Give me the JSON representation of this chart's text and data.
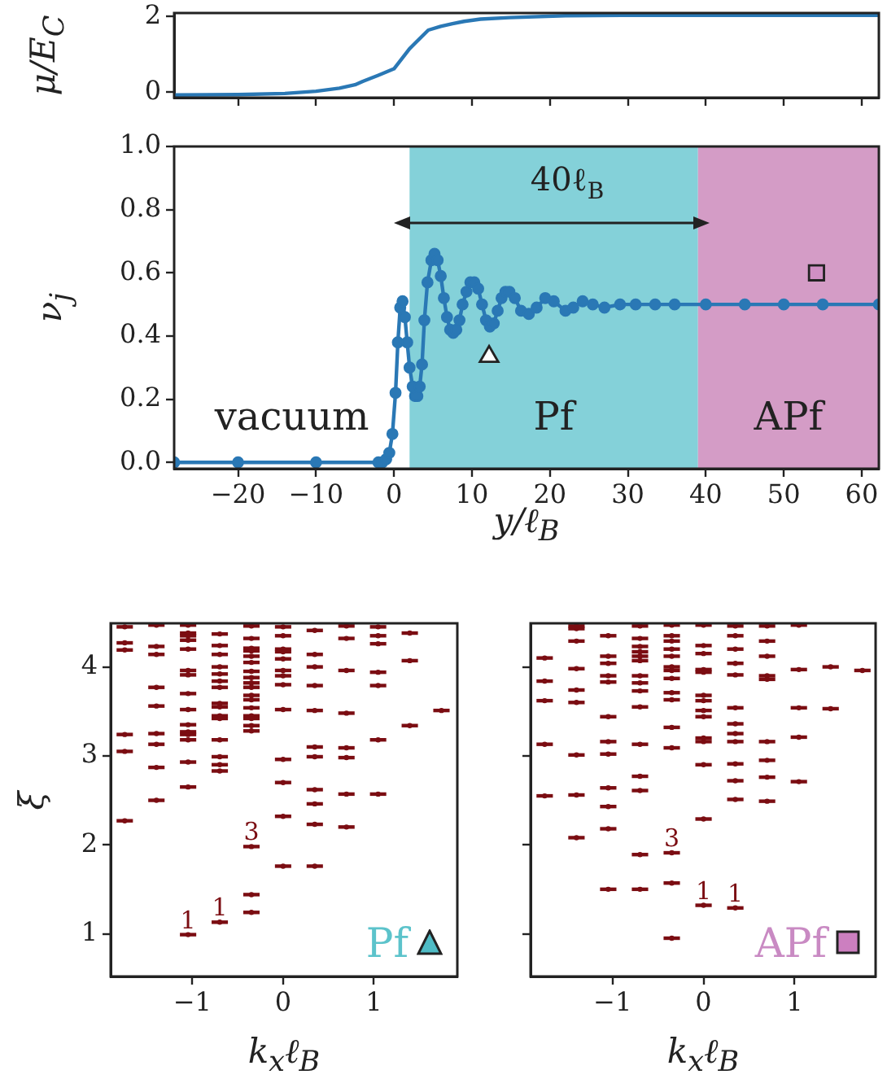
{
  "chart_data": [
    {
      "type": "line",
      "ylabel": "μ/E$_{C}$",
      "x": [
        -28.2,
        -20,
        -14,
        -10,
        -7,
        -5,
        -4,
        -2,
        0,
        2,
        4.4,
        6,
        7.5,
        9,
        11.1,
        14.8,
        22,
        30,
        62.2
      ],
      "series": [
        {
          "color": "#2a78b5",
          "values": [
            -0.07,
            -0.06,
            -0.03,
            0.03,
            0.11,
            0.2,
            0.29,
            0.45,
            0.62,
            1.15,
            1.64,
            1.74,
            1.81,
            1.87,
            1.93,
            1.97,
            2.02,
            2.03,
            2.03
          ]
        }
      ],
      "xlim": [
        -28.2,
        62.2
      ],
      "xticks": [
        {
          "value": -20,
          "label": null
        },
        {
          "value": -10,
          "label": null
        },
        {
          "value": 0,
          "label": null
        },
        {
          "value": 10,
          "label": null
        },
        {
          "value": 20,
          "label": null
        },
        {
          "value": 30,
          "label": null
        },
        {
          "value": 40,
          "label": null
        },
        {
          "value": 50,
          "label": null
        },
        {
          "value": 60,
          "label": null
        }
      ],
      "ylim": [
        -0.14,
        2.09
      ],
      "yticks": [
        0,
        2
      ],
      "tick_labels": "y",
      "marker": "none",
      "grid": false,
      "legend": false
    },
    {
      "type": "line",
      "xlabel": "y/ℓ$_{B}$",
      "ylabel": "ν$_{j}$",
      "x": [
        -28.2,
        -20,
        -10,
        -2,
        -1.5,
        -1.0,
        -0.6,
        -0.2,
        0.2,
        0.5,
        0.8,
        1.1,
        1.4,
        1.7,
        2.0,
        2.4,
        2.7,
        3.0,
        3.3,
        3.6,
        3.9,
        4.3,
        4.8,
        5.2,
        5.6,
        6.0,
        6.4,
        6.8,
        7.2,
        7.6,
        8.0,
        8.4,
        8.8,
        9.3,
        9.8,
        10.3,
        10.8,
        11.3,
        11.8,
        12.3,
        12.8,
        13.3,
        13.8,
        14.3,
        14.8,
        15.5,
        16.3,
        17.3,
        18.3,
        19.4,
        20.5,
        22,
        23,
        24.2,
        25.5,
        27,
        29,
        31,
        33.5,
        36,
        40,
        45,
        50,
        55,
        62.2
      ],
      "series": [
        {
          "color": "#2a78b5",
          "marker": "circle",
          "values": [
            0,
            0,
            0,
            0,
            0,
            0.01,
            0.03,
            0.09,
            0.22,
            0.38,
            0.49,
            0.51,
            0.46,
            0.38,
            0.3,
            0.24,
            0.21,
            0.21,
            0.24,
            0.31,
            0.45,
            0.57,
            0.64,
            0.66,
            0.64,
            0.59,
            0.52,
            0.46,
            0.42,
            0.41,
            0.42,
            0.45,
            0.5,
            0.54,
            0.57,
            0.57,
            0.55,
            0.5,
            0.45,
            0.43,
            0.44,
            0.48,
            0.52,
            0.54,
            0.54,
            0.52,
            0.48,
            0.47,
            0.49,
            0.52,
            0.51,
            0.48,
            0.49,
            0.51,
            0.5,
            0.49,
            0.5,
            0.5,
            0.5,
            0.5,
            0.5,
            0.5,
            0.5,
            0.5,
            0.5
          ]
        },
        {
          "type": "scatter",
          "x": [
            12.2
          ],
          "values": [
            0.335
          ],
          "marker": "triangle",
          "color": "#ffffff"
        },
        {
          "type": "scatter",
          "x": [
            54.2
          ],
          "values": [
            0.6
          ],
          "marker": "square",
          "color": "#d08fc4"
        }
      ],
      "bands": [
        {
          "axis": "x",
          "from": -28.2,
          "to": 2,
          "label": "vacuum",
          "color": "#ffffff"
        },
        {
          "axis": "x",
          "from": 2,
          "to": 39,
          "label": "Pf",
          "color": "#84d1d9"
        },
        {
          "axis": "x",
          "from": 39,
          "to": 62.2,
          "label": "APf",
          "color": "#d49cc6"
        }
      ],
      "annotations": [
        "40ℓ$_{B}$"
      ],
      "xlim": [
        -28.2,
        62.2
      ],
      "xticks": [
        {
          "value": -20,
          "label": "−20"
        },
        {
          "value": -10,
          "label": "−10"
        },
        0,
        10,
        20,
        30,
        40,
        50,
        60
      ],
      "ylim": [
        -0.02,
        1.0
      ],
      "yticks": [
        {
          "value": 0,
          "label": "0.0"
        },
        0.2,
        0.4,
        0.6,
        0.8,
        {
          "value": 1,
          "label": "1.0"
        }
      ],
      "grid": false,
      "legend": false
    },
    {
      "type": "scatter",
      "xlabel": "k$_{x}$ℓ$_{B}$",
      "ylabel": "ξ",
      "marker": "circle",
      "series": [
        {
          "color": "#7b0d12",
          "x": [
            -1.745,
            -1.745,
            -1.745,
            -1.745,
            -1.745,
            -1.745,
            -1.396,
            -1.396,
            -1.396,
            -1.396,
            -1.396,
            -1.396,
            -1.396,
            -1.396,
            -1.396,
            -1.047,
            -1.047,
            -1.047,
            -1.047,
            -1.047,
            -1.047,
            -1.047,
            -1.047,
            -1.047,
            -1.047,
            -1.047,
            -1.047,
            -1.047,
            -1.047,
            -1.047,
            -1.047,
            -0.698,
            -0.698,
            -0.698,
            -0.698,
            -0.698,
            -0.698,
            -0.698,
            -0.698,
            -0.698,
            -0.698,
            -0.698,
            -0.698,
            -0.698,
            -0.698,
            -0.698,
            -0.698,
            -0.349,
            -0.349,
            -0.349,
            -0.349,
            -0.349,
            -0.349,
            -0.349,
            -0.349,
            -0.349,
            -0.349,
            -0.349,
            -0.349,
            -0.349,
            -0.349,
            -0.349,
            -0.349,
            -0.349,
            -0.349,
            -0.349,
            -0.349,
            0,
            0,
            0,
            0,
            0,
            0,
            0,
            0,
            0,
            0,
            0,
            0,
            0,
            0.349,
            0.349,
            0.349,
            0.349,
            0.349,
            0.349,
            0.349,
            0.349,
            0.349,
            0.349,
            0.349,
            0.698,
            0.698,
            0.698,
            0.698,
            0.698,
            0.698,
            0.698,
            0.698,
            1.047,
            1.047,
            1.047,
            1.047,
            1.047,
            1.047,
            1.047,
            1.396,
            1.396,
            1.396,
            1.745
          ],
          "values": [
            4.45,
            4.27,
            4.19,
            3.24,
            3.05,
            2.27,
            4.47,
            4.23,
            4.14,
            3.77,
            3.56,
            3.25,
            3.13,
            2.87,
            2.5,
            4.47,
            4.38,
            4.35,
            4.3,
            4.2,
            3.96,
            3.91,
            3.7,
            3.52,
            3.35,
            3.27,
            3.24,
            3.18,
            2.93,
            2.65,
            0.99,
            4.37,
            4.24,
            4.14,
            4.0,
            3.92,
            3.84,
            3.77,
            3.59,
            3.55,
            3.45,
            3.42,
            3.18,
            2.99,
            2.9,
            2.83,
            1.13,
            4.46,
            4.32,
            4.21,
            4.18,
            4.12,
            4.05,
            3.95,
            3.88,
            3.82,
            3.77,
            3.68,
            3.63,
            3.54,
            3.45,
            3.42,
            3.34,
            3.28,
            1.98,
            1.44,
            1.24,
            4.45,
            4.35,
            4.2,
            4.17,
            4.09,
            3.96,
            3.9,
            3.8,
            3.52,
            2.96,
            2.7,
            2.32,
            1.76,
            4.41,
            4.14,
            4.0,
            3.79,
            3.51,
            3.1,
            2.99,
            2.62,
            2.46,
            2.23,
            1.76,
            4.46,
            4.32,
            3.96,
            3.48,
            3.09,
            2.98,
            2.57,
            2.2,
            4.45,
            4.35,
            4.26,
            3.94,
            3.79,
            3.18,
            2.57,
            4.38,
            4.07,
            3.34,
            3.51
          ],
          "xerrors": [
            0.09,
            0.09,
            0.09,
            0.09,
            0.09,
            0.09,
            0.09,
            0.09,
            0.09,
            0.09,
            0.09,
            0.09,
            0.09,
            0.09,
            0.09,
            0.09,
            0.09,
            0.09,
            0.09,
            0.09,
            0.09,
            0.09,
            0.09,
            0.09,
            0.09,
            0.09,
            0.09,
            0.09,
            0.09,
            0.09,
            0.09,
            0.09,
            0.09,
            0.09,
            0.09,
            0.09,
            0.09,
            0.09,
            0.09,
            0.09,
            0.09,
            0.09,
            0.09,
            0.09,
            0.09,
            0.09,
            0.09,
            0.09,
            0.09,
            0.09,
            0.09,
            0.09,
            0.09,
            0.09,
            0.09,
            0.09,
            0.09,
            0.09,
            0.09,
            0.09,
            0.09,
            0.09,
            0.09,
            0.09,
            0.09,
            0.09,
            0.09,
            0.09,
            0.09,
            0.09,
            0.09,
            0.09,
            0.09,
            0.09,
            0.09,
            0.09,
            0.09,
            0.09,
            0.09,
            0.09,
            0.09,
            0.09,
            0.09,
            0.09,
            0.09,
            0.09,
            0.09,
            0.09,
            0.09,
            0.09,
            0.09,
            0.09,
            0.09,
            0.09,
            0.09,
            0.09,
            0.09,
            0.09,
            0.09,
            0.09,
            0.09,
            0.09,
            0.09,
            0.09,
            0.09,
            0.09,
            0.09,
            0.09,
            0.09,
            0.09
          ]
        }
      ],
      "annotations": [
        {
          "text": "1",
          "x": -1.047,
          "y": 0.99
        },
        {
          "text": "1",
          "x": -0.698,
          "y": 1.13
        },
        {
          "text": "3",
          "x": -0.349,
          "y": 1.98
        },
        "Pf"
      ],
      "xlim": [
        -1.9,
        1.92
      ],
      "xticks": [
        {
          "value": -1,
          "label": "−1"
        },
        0,
        1
      ],
      "ylim": [
        0.52,
        4.49
      ],
      "yticks": [
        1,
        2,
        3,
        4
      ],
      "grid": false,
      "legend": false
    },
    {
      "type": "scatter",
      "xlabel": "k$_{x}$ℓ$_{B}$",
      "marker": "circle",
      "series": [
        {
          "color": "#7b0d12",
          "x": [
            -1.745,
            -1.745,
            -1.745,
            -1.745,
            -1.745,
            -1.396,
            -1.396,
            -1.396,
            -1.396,
            -1.396,
            -1.396,
            -1.396,
            -1.396,
            -1.396,
            -1.047,
            -1.047,
            -1.047,
            -1.047,
            -1.047,
            -1.047,
            -1.047,
            -1.047,
            -1.047,
            -1.047,
            -1.047,
            -1.047,
            -0.698,
            -0.698,
            -0.698,
            -0.698,
            -0.698,
            -0.698,
            -0.698,
            -0.698,
            -0.698,
            -0.698,
            -0.698,
            -0.698,
            -0.698,
            -0.698,
            -0.698,
            -0.349,
            -0.349,
            -0.349,
            -0.349,
            -0.349,
            -0.349,
            -0.349,
            -0.349,
            -0.349,
            -0.349,
            -0.349,
            -0.349,
            -0.349,
            -0.349,
            -0.349,
            0,
            0,
            0,
            0,
            0,
            0,
            0,
            0,
            0,
            0,
            0,
            0,
            0,
            0,
            0.349,
            0.349,
            0.349,
            0.349,
            0.349,
            0.349,
            0.349,
            0.349,
            0.349,
            0.349,
            0.349,
            0.349,
            0.349,
            0.698,
            0.698,
            0.698,
            0.698,
            0.698,
            0.698,
            0.698,
            0.698,
            0.698,
            1.047,
            1.047,
            1.047,
            1.047,
            1.047,
            1.396,
            1.396,
            1.745
          ],
          "values": [
            4.1,
            3.84,
            3.62,
            3.13,
            2.55,
            4.46,
            4.43,
            4.29,
            3.98,
            3.74,
            3.6,
            3.01,
            2.56,
            2.08,
            4.35,
            4.12,
            4.04,
            3.9,
            3.83,
            3.44,
            3.16,
            3.02,
            2.64,
            2.43,
            2.18,
            1.5,
            4.46,
            4.32,
            4.23,
            4.17,
            4.12,
            4.07,
            3.9,
            3.82,
            3.73,
            3.55,
            3.13,
            2.77,
            2.61,
            1.89,
            1.5,
            4.47,
            4.35,
            4.29,
            4.2,
            4.12,
            4.0,
            3.96,
            3.87,
            3.71,
            3.63,
            3.32,
            3.09,
            1.91,
            1.57,
            0.95,
            4.47,
            4.24,
            4.15,
            3.97,
            3.94,
            3.68,
            3.62,
            3.51,
            3.44,
            3.2,
            3.16,
            2.9,
            2.29,
            1.32,
            4.46,
            4.35,
            4.2,
            4.04,
            3.91,
            3.54,
            3.36,
            3.25,
            3.16,
            2.91,
            2.72,
            2.51,
            1.29,
            4.46,
            4.29,
            4.12,
            3.9,
            3.86,
            3.16,
            2.95,
            2.76,
            2.49,
            4.47,
            3.97,
            3.54,
            3.21,
            2.71,
            4.0,
            3.53,
            3.96
          ],
          "xerrors": [
            0.09,
            0.09,
            0.09,
            0.09,
            0.09,
            0.09,
            0.09,
            0.09,
            0.09,
            0.09,
            0.09,
            0.09,
            0.09,
            0.09,
            0.09,
            0.09,
            0.09,
            0.09,
            0.09,
            0.09,
            0.09,
            0.09,
            0.09,
            0.09,
            0.09,
            0.09,
            0.09,
            0.09,
            0.09,
            0.09,
            0.09,
            0.09,
            0.09,
            0.09,
            0.09,
            0.09,
            0.09,
            0.09,
            0.09,
            0.09,
            0.09,
            0.09,
            0.09,
            0.09,
            0.09,
            0.09,
            0.09,
            0.09,
            0.09,
            0.09,
            0.09,
            0.09,
            0.09,
            0.09,
            0.09,
            0.09,
            0.09,
            0.09,
            0.09,
            0.09,
            0.09,
            0.09,
            0.09,
            0.09,
            0.09,
            0.09,
            0.09,
            0.09,
            0.09,
            0.09,
            0.09,
            0.09,
            0.09,
            0.09,
            0.09,
            0.09,
            0.09,
            0.09,
            0.09,
            0.09,
            0.09,
            0.09,
            0.09,
            0.09,
            0.09,
            0.09,
            0.09,
            0.09,
            0.09,
            0.09,
            0.09,
            0.09,
            0.09,
            0.09,
            0.09,
            0.09,
            0.09,
            0.09,
            0.09,
            0.09
          ]
        }
      ],
      "annotations": [
        {
          "text": "3",
          "x": -0.349,
          "y": 1.91
        },
        {
          "text": "1",
          "x": 0,
          "y": 1.32
        },
        {
          "text": "1",
          "x": 0.349,
          "y": 1.29
        },
        "APf"
      ],
      "xlim": [
        -1.9,
        1.89
      ],
      "xticks": [
        {
          "value": -1,
          "label": "−1"
        },
        0,
        1
      ],
      "ylim": [
        0.52,
        4.49
      ],
      "yticks": [
        1,
        2,
        3,
        4
      ],
      "tick_labels": "x",
      "grid": false,
      "legend": false
    }
  ]
}
